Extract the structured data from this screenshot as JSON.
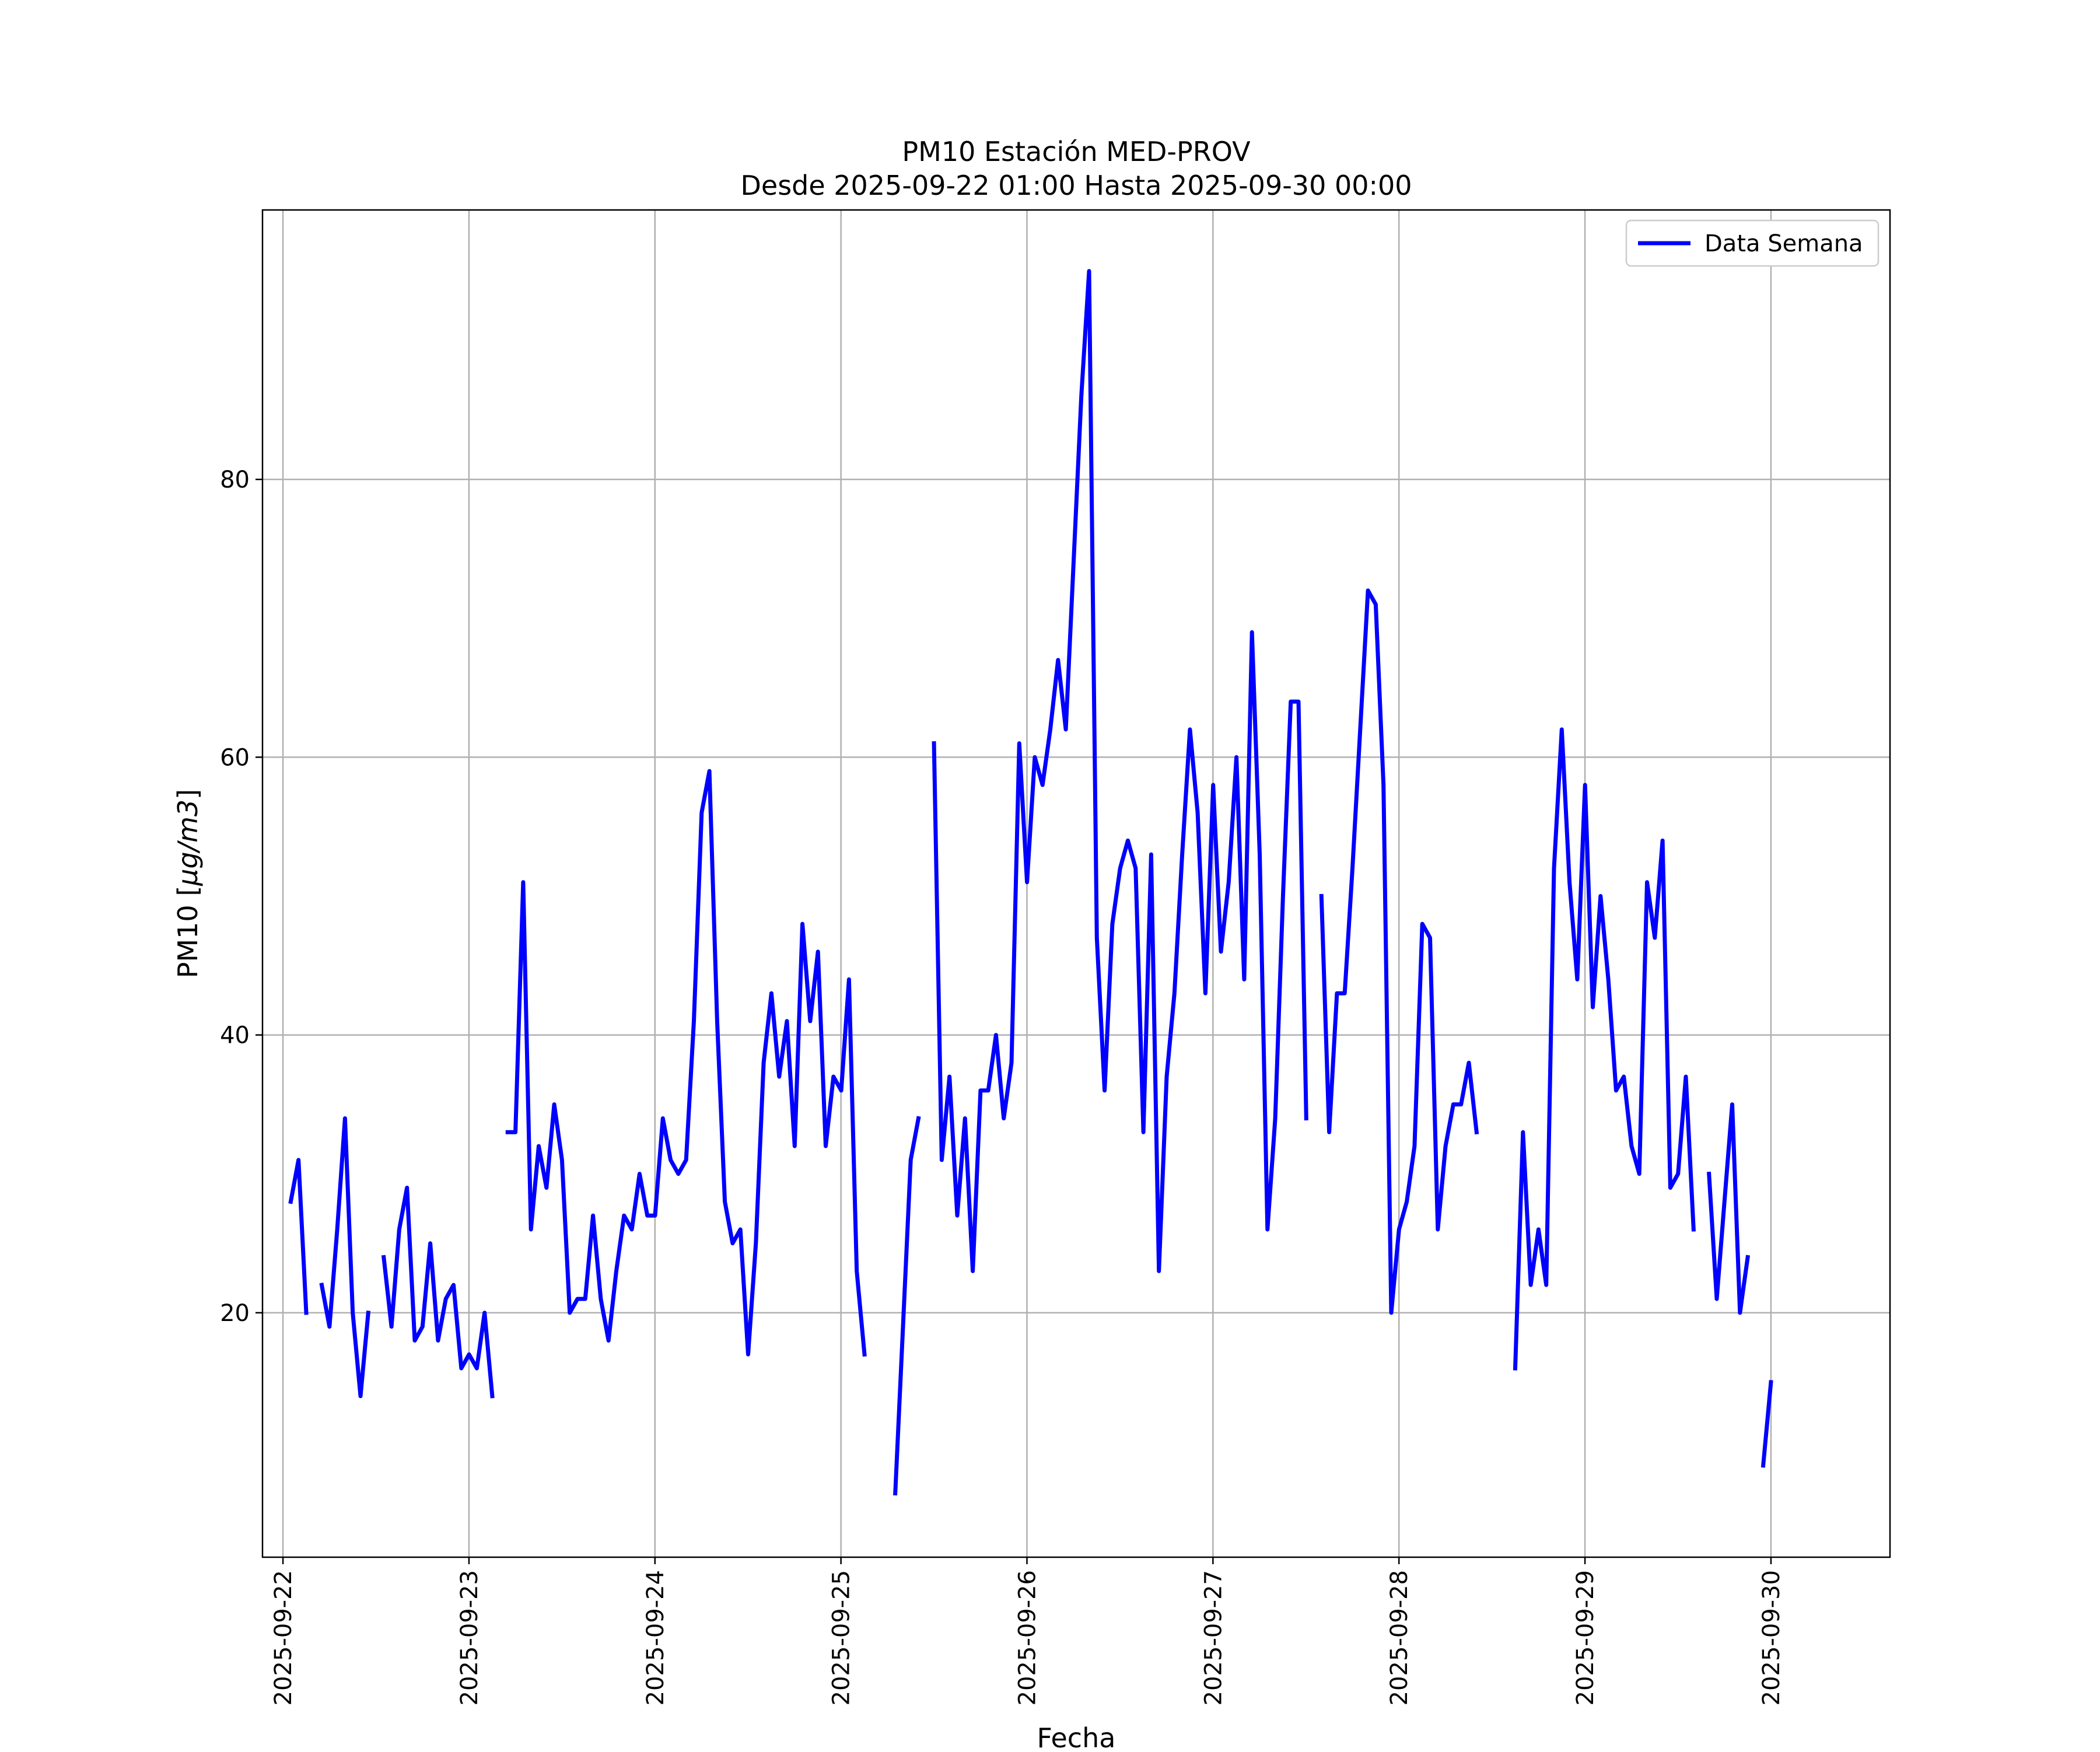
{
  "chart_data": {
    "type": "line",
    "title": "PM10 Estación MED-PROV",
    "subtitle": "Desde 2025-09-22 01:00 Hasta 2025-09-30 00:00",
    "xlabel": "Fecha",
    "ylabel_prefix": "PM10 [",
    "ylabel_unit": "μg/m3",
    "ylabel_suffix": "]",
    "x_ticks": [
      "2025-09-22",
      "2025-09-23",
      "2025-09-24",
      "2025-09-25",
      "2025-09-26",
      "2025-09-27",
      "2025-09-28",
      "2025-09-29",
      "2025-09-30"
    ],
    "x_range": [
      -0.11,
      8.64
    ],
    "y_ticks": [
      20,
      40,
      60,
      80
    ],
    "y_range": [
      2.4,
      99.4
    ],
    "grid": true,
    "legend_position": "top-right",
    "colors": {
      "line": "#0000ff",
      "grid": "#b0b0b0",
      "axes": "#000000"
    },
    "series": [
      {
        "name": "Data Semana",
        "segments": [
          {
            "start": 0.0417,
            "step": 0.0417,
            "values": [
              28,
              31,
              20
            ]
          },
          {
            "start": 0.2083,
            "step": 0.0417,
            "values": [
              22,
              19,
              26,
              34,
              20,
              14,
              20
            ]
          },
          {
            "start": 0.5417,
            "step": 0.0417,
            "values": [
              24,
              19,
              26,
              29,
              18,
              19,
              25,
              18,
              21,
              22,
              16,
              17,
              16,
              20,
              14
            ]
          },
          {
            "start": 1.2083,
            "step": 0.0417,
            "values": [
              33,
              33,
              51,
              26,
              32,
              29,
              35,
              31,
              20,
              21,
              21,
              27,
              21,
              18,
              23,
              27,
              26,
              30,
              27,
              27,
              34,
              31,
              30,
              31,
              41,
              56,
              59,
              41,
              28,
              25,
              26,
              17,
              25,
              38,
              43,
              37,
              41,
              32,
              48,
              41,
              46,
              32,
              37,
              36,
              44,
              23,
              17
            ]
          },
          {
            "start": 3.2917,
            "step": 0.0417,
            "values": [
              7,
              19,
              31,
              34
            ]
          },
          {
            "start": 3.5,
            "step": 0.0417,
            "values": [
              61,
              31,
              37,
              27,
              34,
              23,
              36,
              36,
              40,
              34,
              38,
              61,
              51,
              60,
              58,
              62,
              67,
              62,
              74,
              86,
              95,
              47,
              36,
              48,
              52,
              54,
              52,
              33,
              53,
              23,
              37,
              43,
              53,
              62,
              56,
              43,
              58,
              46,
              51,
              60,
              44,
              69,
              53,
              26,
              34,
              50,
              64,
              64,
              34
            ]
          },
          {
            "start": 5.5833,
            "step": 0.0417,
            "values": [
              50,
              33,
              43,
              43,
              52,
              62,
              72,
              71,
              58,
              20,
              26,
              28,
              32,
              48,
              47,
              26,
              32,
              35,
              35,
              38,
              33
            ]
          },
          {
            "start": 6.625,
            "step": 0.0417,
            "values": [
              16,
              33,
              22,
              26,
              22,
              52,
              62,
              51,
              44,
              58,
              42,
              50,
              44,
              36,
              37,
              32,
              30,
              51,
              47,
              54,
              29,
              30,
              37,
              26
            ]
          },
          {
            "start": 7.6667,
            "step": 0.0417,
            "values": [
              30,
              21,
              28,
              35,
              20,
              24
            ]
          },
          {
            "start": 7.9583,
            "step": 0.0417,
            "values": [
              9,
              15
            ]
          }
        ]
      }
    ]
  }
}
